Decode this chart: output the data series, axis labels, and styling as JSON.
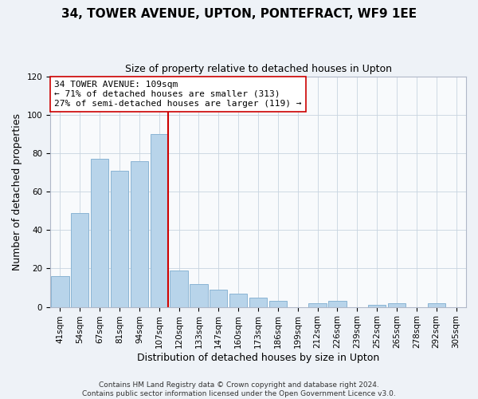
{
  "title": "34, TOWER AVENUE, UPTON, PONTEFRACT, WF9 1EE",
  "subtitle": "Size of property relative to detached houses in Upton",
  "xlabel": "Distribution of detached houses by size in Upton",
  "ylabel": "Number of detached properties",
  "bar_labels": [
    "41sqm",
    "54sqm",
    "67sqm",
    "81sqm",
    "94sqm",
    "107sqm",
    "120sqm",
    "133sqm",
    "147sqm",
    "160sqm",
    "173sqm",
    "186sqm",
    "199sqm",
    "212sqm",
    "226sqm",
    "239sqm",
    "252sqm",
    "265sqm",
    "278sqm",
    "292sqm",
    "305sqm"
  ],
  "bar_values": [
    16,
    49,
    77,
    71,
    76,
    90,
    19,
    12,
    9,
    7,
    5,
    3,
    0,
    2,
    3,
    0,
    1,
    2,
    0,
    2,
    0
  ],
  "bar_color": "#b8d4ea",
  "bar_edge_color": "#8ab4d4",
  "vline_index": 5,
  "vline_color": "#cc0000",
  "annotation_line1": "34 TOWER AVENUE: 109sqm",
  "annotation_line2": "← 71% of detached houses are smaller (313)",
  "annotation_line3": "27% of semi-detached houses are larger (119) →",
  "annotation_box_color": "#ffffff",
  "annotation_box_edge": "#cc0000",
  "ylim": [
    0,
    120
  ],
  "yticks": [
    0,
    20,
    40,
    60,
    80,
    100,
    120
  ],
  "footer_line1": "Contains HM Land Registry data © Crown copyright and database right 2024.",
  "footer_line2": "Contains public sector information licensed under the Open Government Licence v3.0.",
  "bg_color": "#eef2f7",
  "plot_bg_color": "#f8fafc",
  "title_fontsize": 11,
  "subtitle_fontsize": 9,
  "axis_label_fontsize": 9,
  "tick_fontsize": 7.5,
  "annotation_fontsize": 8,
  "footer_fontsize": 6.5
}
